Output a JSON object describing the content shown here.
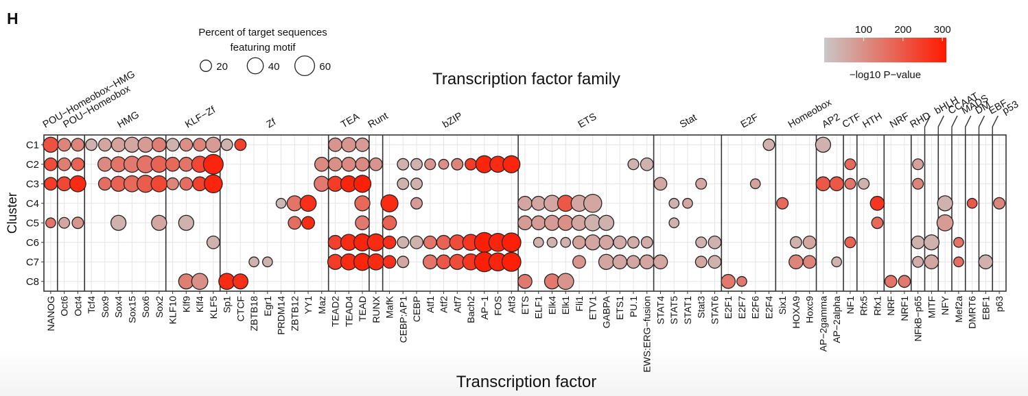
{
  "panel_label": "H",
  "chart_data": {
    "type": "scatter",
    "title": "Transcription factor family",
    "xlabel": "Transcription factor",
    "ylabel": "Cluster",
    "clusters": [
      "C1",
      "C2",
      "C3",
      "C4",
      "C5",
      "C6",
      "C7",
      "C8"
    ],
    "factors": [
      "NANOG",
      "Oct6",
      "Oct4",
      "Tcf4",
      "Sox9",
      "Sox4",
      "Sox15",
      "Sox6",
      "Sox2",
      "KLF10",
      "Klf9",
      "Klf4",
      "KLF5",
      "Sp1",
      "CTCF",
      "ZBTB18",
      "Egr1",
      "PRDM14",
      "ZBTB12",
      "YY1",
      "Maz",
      "TEAD2",
      "TEAD4",
      "TEAD",
      "RUNX",
      "MafK",
      "CEBP:AP1",
      "CEBP",
      "Atf1",
      "Atf2",
      "Atf7",
      "Bach2",
      "AP−1",
      "FOS",
      "Atf3",
      "ETS",
      "ELF1",
      "Elk4",
      "Elk1",
      "Fli1",
      "ETV1",
      "GABPA",
      "ETS1",
      "PU.1",
      "EWS:ERG−fusion",
      "STAT4",
      "STAT5",
      "STAT1",
      "Stat3",
      "STAT6",
      "E2F1",
      "E2F7",
      "E2F6",
      "E2F4",
      "Six1",
      "HOXA9",
      "Hoxc9",
      "AP−2gamma",
      "AP−2alpha",
      "NF1",
      "Rfx5",
      "Rfx1",
      "NRF",
      "NRF1",
      "NFkB−p65",
      "MITF",
      "NFY",
      "Mef2a",
      "DMRT6",
      "EBF1",
      "p63"
    ],
    "families": [
      {
        "name": "POU−Homeobox−HMG",
        "start": 0,
        "end": 0
      },
      {
        "name": "POU−Homeobox",
        "start": 1,
        "end": 2
      },
      {
        "name": "HMG",
        "start": 3,
        "end": 8
      },
      {
        "name": "KLF−Zf",
        "start": 9,
        "end": 12
      },
      {
        "name": "Zf",
        "start": 13,
        "end": 20
      },
      {
        "name": "TEA",
        "start": 21,
        "end": 23
      },
      {
        "name": "Runt",
        "start": 24,
        "end": 24
      },
      {
        "name": "bZIP",
        "start": 25,
        "end": 34
      },
      {
        "name": "ETS",
        "start": 35,
        "end": 44
      },
      {
        "name": "Stat",
        "start": 45,
        "end": 49
      },
      {
        "name": "E2F",
        "start": 50,
        "end": 53
      },
      {
        "name": "Homeobox",
        "start": 54,
        "end": 56
      },
      {
        "name": "AP2",
        "start": 57,
        "end": 58
      },
      {
        "name": "CTF",
        "start": 59,
        "end": 59
      },
      {
        "name": "HTH",
        "start": 60,
        "end": 61
      },
      {
        "name": "NRF",
        "start": 62,
        "end": 63
      },
      {
        "name": "RHD",
        "start": 64,
        "end": 64
      },
      {
        "name": "bHLH",
        "start": 65,
        "end": 65
      },
      {
        "name": "CCAAT",
        "start": 66,
        "end": 66
      },
      {
        "name": "MADS",
        "start": 67,
        "end": 67
      },
      {
        "name": "DM",
        "start": 68,
        "end": 68
      },
      {
        "name": "EBF",
        "start": 69,
        "end": 69
      },
      {
        "name": "p53",
        "start": 70,
        "end": 70
      }
    ],
    "points": [
      [
        "C1",
        "NANOG",
        35,
        210
      ],
      [
        "C1",
        "Oct6",
        25,
        120
      ],
      [
        "C1",
        "Oct4",
        25,
        120
      ],
      [
        "C1",
        "Tcf4",
        20,
        40
      ],
      [
        "C1",
        "Sox9",
        25,
        60
      ],
      [
        "C1",
        "Sox4",
        30,
        70
      ],
      [
        "C1",
        "Sox15",
        35,
        60
      ],
      [
        "C1",
        "Sox6",
        35,
        80
      ],
      [
        "C1",
        "Sox2",
        30,
        130
      ],
      [
        "C1",
        "KLF10",
        25,
        40
      ],
      [
        "C1",
        "Klf9",
        25,
        100
      ],
      [
        "C1",
        "Klf4",
        25,
        120
      ],
      [
        "C1",
        "KLF5",
        35,
        80
      ],
      [
        "C1",
        "Sp1",
        20,
        40
      ],
      [
        "C1",
        "CTCF",
        20,
        240
      ],
      [
        "C1",
        "TEAD2",
        28,
        90
      ],
      [
        "C1",
        "TEAD4",
        32,
        90
      ],
      [
        "C1",
        "TEAD",
        28,
        80
      ],
      [
        "C1",
        "E2F4",
        20,
        40
      ],
      [
        "C1",
        "AP−2gamma",
        35,
        40
      ],
      [
        "C2",
        "NANOG",
        25,
        220
      ],
      [
        "C2",
        "Oct6",
        25,
        130
      ],
      [
        "C2",
        "Oct4",
        25,
        180
      ],
      [
        "C2",
        "Sox9",
        30,
        110
      ],
      [
        "C2",
        "Sox4",
        35,
        150
      ],
      [
        "C2",
        "Sox15",
        40,
        140
      ],
      [
        "C2",
        "Sox6",
        45,
        150
      ],
      [
        "C2",
        "Sox2",
        40,
        180
      ],
      [
        "C2",
        "KLF10",
        30,
        170
      ],
      [
        "C2",
        "Klf9",
        30,
        150
      ],
      [
        "C2",
        "Klf4",
        40,
        230
      ],
      [
        "C2",
        "KLF5",
        60,
        290
      ],
      [
        "C2",
        "Maz",
        30,
        110
      ],
      [
        "C2",
        "TEAD2",
        28,
        100
      ],
      [
        "C2",
        "TEAD4",
        30,
        110
      ],
      [
        "C2",
        "TEAD",
        28,
        110
      ],
      [
        "C2",
        "RUNX",
        25,
        90
      ],
      [
        "C2",
        "CEBP:AP1",
        20,
        40
      ],
      [
        "C2",
        "CEBP",
        20,
        40
      ],
      [
        "C2",
        "Atf1",
        18,
        90
      ],
      [
        "C2",
        "Atf2",
        15,
        100
      ],
      [
        "C2",
        "Atf7",
        20,
        120
      ],
      [
        "C2",
        "Bach2",
        20,
        250
      ],
      [
        "C2",
        "AP−1",
        45,
        290
      ],
      [
        "C2",
        "FOS",
        40,
        280
      ],
      [
        "C2",
        "Atf3",
        45,
        290
      ],
      [
        "C2",
        "PU.1",
        18,
        40
      ],
      [
        "C2",
        "EWS:ERG−fusion",
        25,
        40
      ],
      [
        "C2",
        "NF1",
        18,
        170
      ],
      [
        "C2",
        "NFkB−p65",
        18,
        70
      ],
      [
        "C3",
        "NANOG",
        25,
        250
      ],
      [
        "C3",
        "Oct6",
        30,
        230
      ],
      [
        "C3",
        "Oct4",
        40,
        280
      ],
      [
        "C3",
        "Sox9",
        25,
        160
      ],
      [
        "C3",
        "Sox4",
        35,
        180
      ],
      [
        "C3",
        "Sox15",
        40,
        170
      ],
      [
        "C3",
        "Sox6",
        45,
        190
      ],
      [
        "C3",
        "Sox2",
        40,
        230
      ],
      [
        "C3",
        "KLF10",
        22,
        120
      ],
      [
        "C3",
        "Klf9",
        25,
        160
      ],
      [
        "C3",
        "Klf4",
        30,
        240
      ],
      [
        "C3",
        "KLF5",
        50,
        290
      ],
      [
        "C3",
        "Maz",
        35,
        140
      ],
      [
        "C3",
        "TEAD2",
        35,
        250
      ],
      [
        "C3",
        "TEAD4",
        40,
        290
      ],
      [
        "C3",
        "TEAD",
        45,
        300
      ],
      [
        "C3",
        "CEBP:AP1",
        20,
        40
      ],
      [
        "C3",
        "CEBP",
        20,
        40
      ],
      [
        "C3",
        "STAT4",
        25,
        60
      ],
      [
        "C3",
        "Stat3",
        18,
        60
      ],
      [
        "C3",
        "E2F6",
        15,
        70
      ],
      [
        "C3",
        "AP−2gamma",
        30,
        200
      ],
      [
        "C3",
        "AP−2alpha",
        30,
        200
      ],
      [
        "C3",
        "NF1",
        18,
        150
      ],
      [
        "C3",
        "Rfx5",
        18,
        40
      ],
      [
        "C3",
        "NFkB−p65",
        18,
        120
      ],
      [
        "C4",
        "PRDM14",
        15,
        30
      ],
      [
        "C4",
        "ZBTB12",
        35,
        150
      ],
      [
        "C4",
        "YY1",
        40,
        270
      ],
      [
        "C4",
        "TEAD",
        35,
        170
      ],
      [
        "C4",
        "MafK",
        45,
        280
      ],
      [
        "C4",
        "CEBP",
        20,
        80
      ],
      [
        "C4",
        "ETS",
        30,
        60
      ],
      [
        "C4",
        "ELF1",
        30,
        60
      ],
      [
        "C4",
        "Elk4",
        40,
        60
      ],
      [
        "C4",
        "Elk1",
        40,
        200
      ],
      [
        "C4",
        "Fli1",
        40,
        60
      ],
      [
        "C4",
        "ETV1",
        50,
        60
      ],
      [
        "C4",
        "STAT5",
        15,
        40
      ],
      [
        "C4",
        "STAT1",
        15,
        60
      ],
      [
        "C4",
        "Six1",
        20,
        170
      ],
      [
        "C4",
        "Rfx1",
        30,
        260
      ],
      [
        "C4",
        "NFY",
        35,
        40
      ],
      [
        "C4",
        "DMRT6",
        15,
        200
      ],
      [
        "C4",
        "p63",
        20,
        120
      ],
      [
        "C5",
        "NANOG",
        15,
        150
      ],
      [
        "C5",
        "Oct6",
        18,
        60
      ],
      [
        "C5",
        "Oct4",
        20,
        90
      ],
      [
        "C5",
        "Sox4",
        35,
        40
      ],
      [
        "C5",
        "Sox2",
        35,
        60
      ],
      [
        "C5",
        "Klf9",
        35,
        40
      ],
      [
        "C5",
        "ZBTB12",
        25,
        160
      ],
      [
        "C5",
        "YY1",
        25,
        280
      ],
      [
        "C5",
        "TEAD",
        30,
        140
      ],
      [
        "C5",
        "MafK",
        30,
        180
      ],
      [
        "C5",
        "ETS",
        30,
        80
      ],
      [
        "C5",
        "ELF1",
        30,
        80
      ],
      [
        "C5",
        "Elk4",
        35,
        80
      ],
      [
        "C5",
        "Elk1",
        35,
        100
      ],
      [
        "C5",
        "Fli1",
        35,
        60
      ],
      [
        "C5",
        "ETV1",
        40,
        40
      ],
      [
        "C5",
        "GABPA",
        35,
        40
      ],
      [
        "C5",
        "STAT5",
        15,
        40
      ],
      [
        "C5",
        "Rfx1",
        20,
        170
      ],
      [
        "C5",
        "NFY",
        40,
        80
      ],
      [
        "C6",
        "KLF5",
        25,
        40
      ],
      [
        "C6",
        "TEAD2",
        30,
        240
      ],
      [
        "C6",
        "TEAD4",
        40,
        280
      ],
      [
        "C6",
        "TEAD",
        45,
        290
      ],
      [
        "C6",
        "RUNX",
        45,
        280
      ],
      [
        "C6",
        "MafK",
        25,
        270
      ],
      [
        "C6",
        "CEBP:AP1",
        20,
        40
      ],
      [
        "C6",
        "CEBP",
        25,
        40
      ],
      [
        "C6",
        "Atf1",
        25,
        150
      ],
      [
        "C6",
        "Atf2",
        30,
        180
      ],
      [
        "C6",
        "Atf7",
        35,
        220
      ],
      [
        "C6",
        "Bach2",
        40,
        260
      ],
      [
        "C6",
        "AP−1",
        60,
        300
      ],
      [
        "C6",
        "FOS",
        50,
        290
      ],
      [
        "C6",
        "Atf3",
        55,
        300
      ],
      [
        "C6",
        "ELF1",
        15,
        40
      ],
      [
        "C6",
        "Elk4",
        15,
        40
      ],
      [
        "C6",
        "Elk1",
        15,
        40
      ],
      [
        "C6",
        "Fli1",
        25,
        70
      ],
      [
        "C6",
        "ETV1",
        35,
        60
      ],
      [
        "C6",
        "GABPA",
        30,
        60
      ],
      [
        "C6",
        "ETS1",
        25,
        50
      ],
      [
        "C6",
        "PU.1",
        20,
        50
      ],
      [
        "C6",
        "EWS:ERG−fusion",
        20,
        50
      ],
      [
        "C6",
        "Stat3",
        18,
        40
      ],
      [
        "C6",
        "STAT6",
        25,
        40
      ],
      [
        "C6",
        "HOXA9",
        20,
        40
      ],
      [
        "C6",
        "Hoxc9",
        25,
        60
      ],
      [
        "C6",
        "NF1",
        18,
        180
      ],
      [
        "C6",
        "NFkB−p65",
        25,
        40
      ],
      [
        "C6",
        "MITF",
        35,
        40
      ],
      [
        "C6",
        "Mef2a",
        15,
        150
      ],
      [
        "C7",
        "ZBTB18",
        15,
        40
      ],
      [
        "C7",
        "Egr1",
        15,
        40
      ],
      [
        "C7",
        "TEAD2",
        35,
        250
      ],
      [
        "C7",
        "TEAD4",
        40,
        280
      ],
      [
        "C7",
        "TEAD",
        45,
        290
      ],
      [
        "C7",
        "RUNX",
        40,
        280
      ],
      [
        "C7",
        "MafK",
        25,
        270
      ],
      [
        "C7",
        "CEBP:AP1",
        20,
        60
      ],
      [
        "C7",
        "Atf1",
        30,
        150
      ],
      [
        "C7",
        "Atf2",
        30,
        200
      ],
      [
        "C7",
        "Atf7",
        35,
        220
      ],
      [
        "C7",
        "Bach2",
        40,
        260
      ],
      [
        "C7",
        "AP−1",
        60,
        300
      ],
      [
        "C7",
        "FOS",
        50,
        290
      ],
      [
        "C7",
        "Atf3",
        55,
        300
      ],
      [
        "C7",
        "Fli1",
        25,
        90
      ],
      [
        "C7",
        "GABPA",
        35,
        60
      ],
      [
        "C7",
        "ETS1",
        30,
        60
      ],
      [
        "C7",
        "PU.1",
        25,
        60
      ],
      [
        "C7",
        "EWS:ERG−fusion",
        30,
        60
      ],
      [
        "C7",
        "STAT4",
        30,
        60
      ],
      [
        "C7",
        "Stat3",
        20,
        60
      ],
      [
        "C7",
        "STAT6",
        25,
        40
      ],
      [
        "C7",
        "HOXA9",
        30,
        120
      ],
      [
        "C7",
        "Hoxc9",
        25,
        120
      ],
      [
        "C7",
        "AP−2alpha",
        15,
        40
      ],
      [
        "C7",
        "NFkB−p65",
        18,
        50
      ],
      [
        "C7",
        "MITF",
        30,
        60
      ],
      [
        "C7",
        "Mef2a",
        15,
        160
      ],
      [
        "C7",
        "EBF1",
        30,
        40
      ],
      [
        "C8",
        "Klf9",
        35,
        130
      ],
      [
        "C8",
        "Klf4",
        40,
        100
      ],
      [
        "C8",
        "Sp1",
        40,
        280
      ],
      [
        "C8",
        "CTCF",
        35,
        270
      ],
      [
        "C8",
        "ETS",
        30,
        140
      ],
      [
        "C8",
        "Elk4",
        35,
        140
      ],
      [
        "C8",
        "Elk1",
        40,
        90
      ],
      [
        "C8",
        "E2F1",
        30,
        140
      ],
      [
        "C8",
        "E2F7",
        15,
        140
      ],
      [
        "C8",
        "NRF",
        22,
        150
      ],
      [
        "C8",
        "NRF1",
        22,
        140
      ]
    ],
    "size_legend": {
      "title": "Percent of target sequences featuring motif",
      "values": [
        20,
        40,
        60
      ]
    },
    "color_legend": {
      "title": "−log10  P−value",
      "ticks": [
        100,
        200,
        300
      ],
      "range": [
        0,
        310
      ],
      "low_color": "#c8c8c8",
      "high_color": "#ff1a00"
    },
    "grid": true
  }
}
